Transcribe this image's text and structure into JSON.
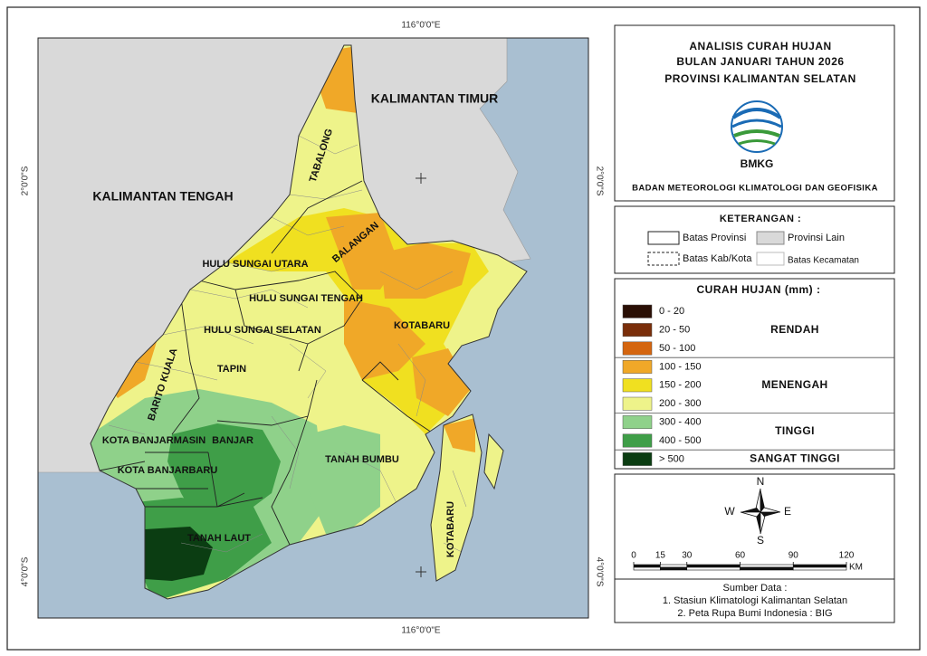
{
  "coords": {
    "top": "116°0'0\"E",
    "bottom": "116°0'0\"E",
    "left_top": "2°0'0\"S",
    "left_bottom": "4°0'0\"S",
    "right_top": "2°0'0\"S",
    "right_bottom": "4°0'0\"S"
  },
  "map_labels": [
    "KALIMANTAN TIMUR",
    "KALIMANTAN TENGAH",
    "TABALONG",
    "BALANGAN",
    "HULU SUNGAI UTARA",
    "HULU SUNGAI TENGAH",
    "HULU SUNGAI SELATAN",
    "TAPIN",
    "BARITO KUALA",
    "KOTABARU",
    "KOTA BANJARMASIN",
    "BANJAR",
    "KOTA BANJARBARU",
    "TANAH BUMBU",
    "TANAH LAUT",
    "KOTABARU"
  ],
  "header": {
    "title_lines": [
      "ANALISIS CURAH HUJAN",
      "BULAN JANUARI TAHUN 2026",
      "PROVINSI KALIMANTAN SELATAN"
    ],
    "logo_text": "BMKG",
    "agency": "BADAN METEOROLOGI KLIMATOLOGI DAN GEOFISIKA"
  },
  "keterangan": {
    "title": "KETERANGAN :",
    "items": [
      "Batas Provinsi",
      "Provinsi Lain",
      "Batas Kab/Kota",
      "Batas Kecamatan"
    ]
  },
  "legend": {
    "title": "CURAH HUJAN (mm) :",
    "groups": [
      {
        "name": "RENDAH",
        "classes": [
          {
            "range": "0 - 20",
            "color": "#2a0f05"
          },
          {
            "range": "20 - 50",
            "color": "#7a2e0a"
          },
          {
            "range": "50 - 100",
            "color": "#d4650f"
          }
        ]
      },
      {
        "name": "MENENGAH",
        "classes": [
          {
            "range": "100 - 150",
            "color": "#f0a828"
          },
          {
            "range": "150  - 200",
            "color": "#f0e020"
          },
          {
            "range": "200 - 300",
            "color": "#eef38a"
          }
        ]
      },
      {
        "name": "TINGGI",
        "classes": [
          {
            "range": "300 - 400",
            "color": "#8fd18a"
          },
          {
            "range": "400 - 500",
            "color": "#3f9e48"
          }
        ]
      },
      {
        "name": "SANGAT TINGGI",
        "classes": [
          {
            "range": "> 500",
            "color": "#0b3d12"
          }
        ]
      }
    ]
  },
  "compass": {
    "north": "N",
    "south": "S",
    "east": "E",
    "west": "W"
  },
  "scale": {
    "ticks": [
      0,
      15,
      30,
      60,
      90,
      120
    ],
    "unit": "KM"
  },
  "source": {
    "title": "Sumber Data :",
    "lines": [
      "1. Stasiun Klimatologi Kalimantan Selatan",
      "2. Peta Rupa Bumi Indonesia : BIG"
    ]
  }
}
